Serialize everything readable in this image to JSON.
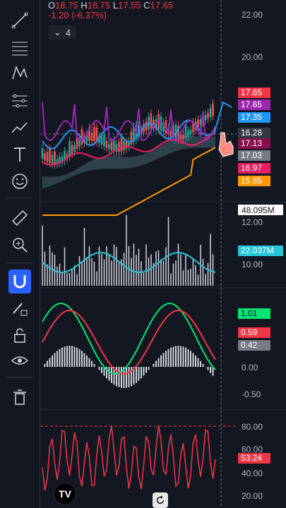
{
  "legend": {
    "open_label": "O",
    "open": "18.75",
    "high_label": "H",
    "high": "18.75",
    "low_label": "L",
    "low": "17.55",
    "close_label": "C",
    "close": "17.65",
    "change": "-1.20 (-6.37%)"
  },
  "collapse_count": "4",
  "price_axis": [
    "22.00",
    "20.00",
    "12.00",
    "10.00"
  ],
  "price_badges": [
    {
      "value": "17.65",
      "color": "#f23645"
    },
    {
      "value": "17.65",
      "color": "#9c27b0"
    },
    {
      "value": "17.35",
      "color": "#2196f3"
    },
    {
      "value": "16.28",
      "color": "#363a45"
    },
    {
      "value": "17.13",
      "color": "#880e4f"
    },
    {
      "value": "17.03",
      "color": "#787b86"
    },
    {
      "value": "16.97",
      "color": "#e91e63"
    },
    {
      "value": "15.85",
      "color": "#ff9800"
    }
  ],
  "volume_badges": [
    {
      "value": "48.095M",
      "color": "#ffffff"
    },
    {
      "value": "22.037M",
      "color": "#26c6da"
    }
  ],
  "macd_axis": [
    "0.00",
    "-0.50"
  ],
  "macd_badges": [
    {
      "value": "1.01",
      "color": "#00e676"
    },
    {
      "value": "0.59",
      "color": "#f23645"
    },
    {
      "value": "0.42",
      "color": "#787b86"
    }
  ],
  "rsi_axis": [
    "80.00",
    "60.00",
    "40.00",
    "20.00"
  ],
  "rsi_badge": {
    "value": "53.24",
    "color": "#f23645"
  },
  "logo_text": "TV",
  "tools": [
    "trend-line-icon",
    "fib-icon",
    "pattern-icon",
    "gann-icon",
    "brush-icon",
    "text-icon",
    "emoji-icon",
    "ruler-icon",
    "zoom-in-icon",
    "magnet-icon",
    "lock-draw-icon",
    "unlock-icon",
    "eye-icon",
    "trash-icon"
  ]
}
